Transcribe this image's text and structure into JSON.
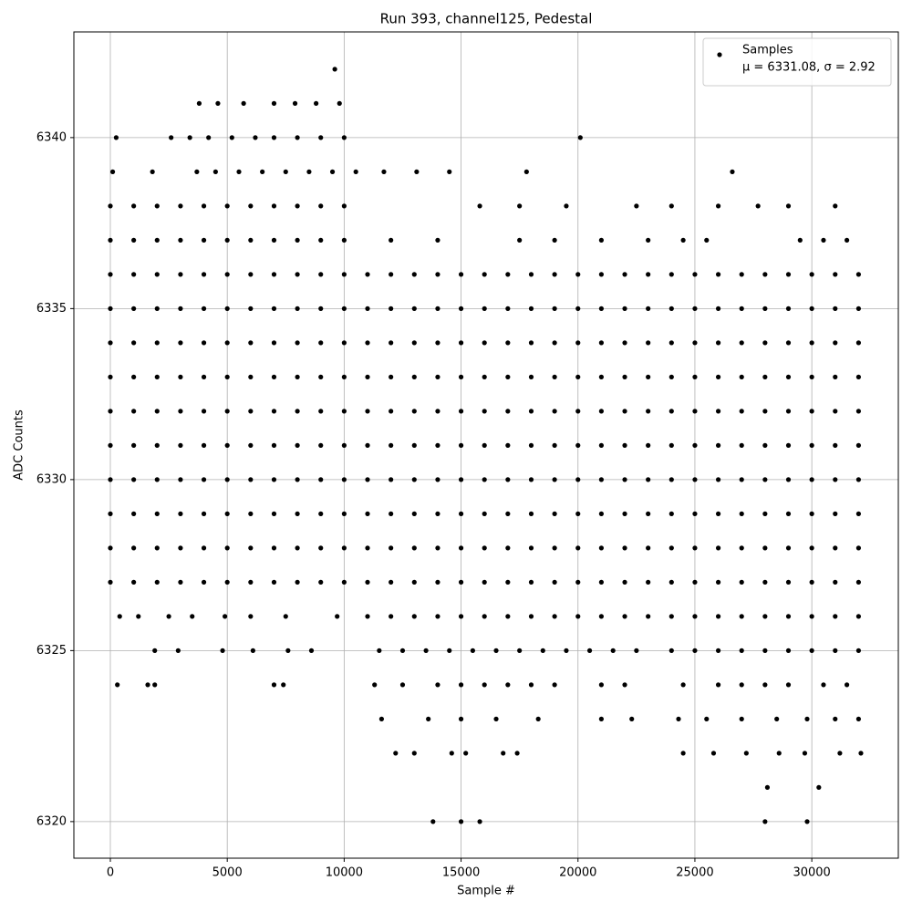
{
  "chart_data": {
    "type": "scatter",
    "title": "Run 393, channel125, Pedestal",
    "x_label": "Sample #",
    "y_label": "ADC Counts",
    "xlim": [
      -1560,
      33700
    ],
    "ylim": [
      6318.93,
      6343.09
    ],
    "xticks": [
      0,
      5000,
      10000,
      15000,
      20000,
      25000,
      30000
    ],
    "yticks": [
      6320,
      6325,
      6330,
      6335,
      6340
    ],
    "grid": true,
    "legend": "upper right",
    "legend_note": "μ = 6331.08, σ = 2.92",
    "x": [
      0,
      1000,
      2000,
      3000,
      4000,
      5000,
      6000,
      7000,
      8000,
      9000,
      10000,
      11000,
      12000,
      13000,
      14000,
      15000,
      16000,
      17000,
      18000,
      19000,
      20000,
      21000,
      22000,
      23000,
      24000,
      25000,
      26000,
      27000,
      28000,
      29000,
      30000,
      31000,
      32000,
      0,
      1000,
      2000,
      3000,
      4000,
      5000,
      6000,
      7000,
      8000,
      9000,
      10000,
      11000,
      12000,
      13000,
      14000,
      15000,
      16000,
      17000,
      18000,
      19000,
      20000,
      21000,
      22000,
      23000,
      24000,
      25000,
      26000,
      27000,
      28000,
      29000,
      30000,
      31000,
      32000,
      0,
      1000,
      2000,
      3000,
      4000,
      5000,
      6000,
      7000,
      8000,
      9000,
      10000,
      11000,
      12000,
      13000,
      14000,
      15000,
      16000,
      17000,
      18000,
      19000,
      20000,
      21000,
      22000,
      23000,
      24000,
      25000,
      26000,
      27000,
      28000,
      29000,
      30000,
      31000,
      32000,
      0,
      1000,
      2000,
      3000,
      4000,
      5000,
      6000,
      7000,
      8000,
      9000,
      10000,
      11000,
      12000,
      13000,
      14000,
      15000,
      16000,
      17000,
      18000,
      19000,
      20000,
      21000,
      22000,
      23000,
      24000,
      25000,
      26000,
      27000,
      28000,
      29000,
      30000,
      31000,
      32000,
      0,
      1000,
      2000,
      3000,
      4000,
      5000,
      6000,
      7000,
      8000,
      9000,
      10000,
      11000,
      12000,
      13000,
      14000,
      15000,
      16000,
      17000,
      18000,
      19000,
      20000,
      21000,
      22000,
      23000,
      24000,
      25000,
      26000,
      27000,
      28000,
      29000,
      30000,
      31000,
      32000,
      0,
      1000,
      2000,
      3000,
      4000,
      5000,
      6000,
      7000,
      8000,
      9000,
      10000,
      11000,
      12000,
      13000,
      14000,
      15000,
      16000,
      17000,
      18000,
      19000,
      20000,
      21000,
      22000,
      23000,
      24000,
      25000,
      26000,
      27000,
      28000,
      29000,
      30000,
      31000,
      32000,
      0,
      1000,
      2000,
      3000,
      4000,
      5000,
      6000,
      7000,
      8000,
      9000,
      10000,
      11000,
      12000,
      13000,
      14000,
      15000,
      16000,
      17000,
      18000,
      19000,
      20000,
      21000,
      22000,
      23000,
      24000,
      25000,
      26000,
      27000,
      28000,
      29000,
      30000,
      31000,
      32000,
      0,
      1000,
      2000,
      3000,
      4000,
      5000,
      6000,
      7000,
      8000,
      9000,
      10000,
      11000,
      12000,
      13000,
      14000,
      15000,
      16000,
      17000,
      18000,
      19000,
      20000,
      21000,
      22000,
      23000,
      24000,
      25000,
      26000,
      27000,
      28000,
      29000,
      30000,
      31000,
      32000,
      0,
      1000,
      2000,
      3000,
      4000,
      5000,
      6000,
      7000,
      8000,
      9000,
      10000,
      11000,
      12000,
      13000,
      14000,
      15000,
      16000,
      17000,
      18000,
      19000,
      20000,
      21000,
      22000,
      23000,
      24000,
      25000,
      26000,
      27000,
      28000,
      29000,
      30000,
      31000,
      32000,
      0,
      1000,
      2000,
      3000,
      4000,
      5000,
      6000,
      7000,
      8000,
      9000,
      10000,
      11000,
      12000,
      13000,
      14000,
      15000,
      16000,
      17000,
      18000,
      19000,
      20000,
      21000,
      22000,
      23000,
      24000,
      25000,
      26000,
      27000,
      28000,
      29000,
      30000,
      31000,
      32000,
      0,
      1000,
      2000,
      3000,
      4000,
      5000,
      6000,
      7000,
      8000,
      9000,
      10000,
      12000,
      14000,
      17500,
      19000,
      21000,
      23000,
      24500,
      25500,
      29500,
      30500,
      31500,
      0,
      1000,
      2000,
      3000,
      4000,
      5000,
      6000,
      7000,
      8000,
      9000,
      10000,
      15800,
      17500,
      19500,
      22500,
      24000,
      26000,
      27700,
      29000,
      31000,
      100,
      1800,
      3700,
      4500,
      5500,
      6500,
      7500,
      8500,
      9500,
      10500,
      11700,
      13100,
      14500,
      17800,
      26600,
      250,
      2600,
      3400,
      4200,
      5200,
      6200,
      7000,
      8000,
      9000,
      10000,
      20100,
      3800,
      4600,
      5700,
      7000,
      7900,
      8800,
      9800,
      9600,
      400,
      1200,
      2500,
      3500,
      4900,
      6000,
      7500,
      9700,
      11000,
      12000,
      13000,
      14000,
      15000,
      16000,
      17000,
      18000,
      19000,
      20000,
      21000,
      22000,
      23000,
      24000,
      25000,
      26000,
      27000,
      28000,
      29000,
      30000,
      31000,
      32000,
      1900,
      2900,
      4800,
      6100,
      7600,
      8600,
      11500,
      12500,
      13500,
      14500,
      15500,
      16500,
      17500,
      18500,
      19500,
      20500,
      21500,
      22500,
      24000,
      25000,
      26000,
      27000,
      28000,
      29000,
      30000,
      31000,
      32000,
      300,
      1600,
      1900,
      7000,
      7400,
      11300,
      12500,
      14000,
      15000,
      16000,
      17000,
      18000,
      19000,
      21000,
      22000,
      24500,
      26000,
      27000,
      28000,
      29000,
      30500,
      31500,
      11600,
      13600,
      15000,
      16500,
      18300,
      21000,
      22300,
      24300,
      25500,
      27000,
      28500,
      29800,
      31000,
      32000,
      12200,
      13000,
      14600,
      15200,
      16800,
      17400,
      24500,
      25800,
      27200,
      28600,
      29700,
      31200,
      32100,
      28100,
      30300,
      13800,
      15000,
      15800,
      28000,
      29800
    ],
    "series": [
      {
        "name": "Samples",
        "color": "#000000",
        "values": [
          6327,
          6327,
          6327,
          6327,
          6327,
          6327,
          6327,
          6327,
          6327,
          6327,
          6327,
          6327,
          6327,
          6327,
          6327,
          6327,
          6327,
          6327,
          6327,
          6327,
          6327,
          6327,
          6327,
          6327,
          6327,
          6327,
          6327,
          6327,
          6327,
          6327,
          6327,
          6327,
          6327,
          6328,
          6328,
          6328,
          6328,
          6328,
          6328,
          6328,
          6328,
          6328,
          6328,
          6328,
          6328,
          6328,
          6328,
          6328,
          6328,
          6328,
          6328,
          6328,
          6328,
          6328,
          6328,
          6328,
          6328,
          6328,
          6328,
          6328,
          6328,
          6328,
          6328,
          6328,
          6328,
          6328,
          6329,
          6329,
          6329,
          6329,
          6329,
          6329,
          6329,
          6329,
          6329,
          6329,
          6329,
          6329,
          6329,
          6329,
          6329,
          6329,
          6329,
          6329,
          6329,
          6329,
          6329,
          6329,
          6329,
          6329,
          6329,
          6329,
          6329,
          6329,
          6329,
          6329,
          6329,
          6329,
          6329,
          6330,
          6330,
          6330,
          6330,
          6330,
          6330,
          6330,
          6330,
          6330,
          6330,
          6330,
          6330,
          6330,
          6330,
          6330,
          6330,
          6330,
          6330,
          6330,
          6330,
          6330,
          6330,
          6330,
          6330,
          6330,
          6330,
          6330,
          6330,
          6330,
          6330,
          6330,
          6330,
          6330,
          6331,
          6331,
          6331,
          6331,
          6331,
          6331,
          6331,
          6331,
          6331,
          6331,
          6331,
          6331,
          6331,
          6331,
          6331,
          6331,
          6331,
          6331,
          6331,
          6331,
          6331,
          6331,
          6331,
          6331,
          6331,
          6331,
          6331,
          6331,
          6331,
          6331,
          6331,
          6331,
          6331,
          6332,
          6332,
          6332,
          6332,
          6332,
          6332,
          6332,
          6332,
          6332,
          6332,
          6332,
          6332,
          6332,
          6332,
          6332,
          6332,
          6332,
          6332,
          6332,
          6332,
          6332,
          6332,
          6332,
          6332,
          6332,
          6332,
          6332,
          6332,
          6332,
          6332,
          6332,
          6332,
          6332,
          6333,
          6333,
          6333,
          6333,
          6333,
          6333,
          6333,
          6333,
          6333,
          6333,
          6333,
          6333,
          6333,
          6333,
          6333,
          6333,
          6333,
          6333,
          6333,
          6333,
          6333,
          6333,
          6333,
          6333,
          6333,
          6333,
          6333,
          6333,
          6333,
          6333,
          6333,
          6333,
          6333,
          6334,
          6334,
          6334,
          6334,
          6334,
          6334,
          6334,
          6334,
          6334,
          6334,
          6334,
          6334,
          6334,
          6334,
          6334,
          6334,
          6334,
          6334,
          6334,
          6334,
          6334,
          6334,
          6334,
          6334,
          6334,
          6334,
          6334,
          6334,
          6334,
          6334,
          6334,
          6334,
          6334,
          6335,
          6335,
          6335,
          6335,
          6335,
          6335,
          6335,
          6335,
          6335,
          6335,
          6335,
          6335,
          6335,
          6335,
          6335,
          6335,
          6335,
          6335,
          6335,
          6335,
          6335,
          6335,
          6335,
          6335,
          6335,
          6335,
          6335,
          6335,
          6335,
          6335,
          6335,
          6335,
          6335,
          6336,
          6336,
          6336,
          6336,
          6336,
          6336,
          6336,
          6336,
          6336,
          6336,
          6336,
          6336,
          6336,
          6336,
          6336,
          6336,
          6336,
          6336,
          6336,
          6336,
          6336,
          6336,
          6336,
          6336,
          6336,
          6336,
          6336,
          6336,
          6336,
          6336,
          6336,
          6336,
          6336,
          6337,
          6337,
          6337,
          6337,
          6337,
          6337,
          6337,
          6337,
          6337,
          6337,
          6337,
          6337,
          6337,
          6337,
          6337,
          6337,
          6337,
          6337,
          6337,
          6337,
          6337,
          6337,
          6338,
          6338,
          6338,
          6338,
          6338,
          6338,
          6338,
          6338,
          6338,
          6338,
          6338,
          6338,
          6338,
          6338,
          6338,
          6338,
          6338,
          6338,
          6338,
          6338,
          6339,
          6339,
          6339,
          6339,
          6339,
          6339,
          6339,
          6339,
          6339,
          6339,
          6339,
          6339,
          6339,
          6339,
          6339,
          6340,
          6340,
          6340,
          6340,
          6340,
          6340,
          6340,
          6340,
          6340,
          6340,
          6340,
          6341,
          6341,
          6341,
          6341,
          6341,
          6341,
          6341,
          6342,
          6326,
          6326,
          6326,
          6326,
          6326,
          6326,
          6326,
          6326,
          6326,
          6326,
          6326,
          6326,
          6326,
          6326,
          6326,
          6326,
          6326,
          6326,
          6326,
          6326,
          6326,
          6326,
          6326,
          6326,
          6326,
          6326,
          6326,
          6326,
          6326,
          6326,
          6325,
          6325,
          6325,
          6325,
          6325,
          6325,
          6325,
          6325,
          6325,
          6325,
          6325,
          6325,
          6325,
          6325,
          6325,
          6325,
          6325,
          6325,
          6325,
          6325,
          6325,
          6325,
          6325,
          6325,
          6325,
          6325,
          6325,
          6324,
          6324,
          6324,
          6324,
          6324,
          6324,
          6324,
          6324,
          6324,
          6324,
          6324,
          6324,
          6324,
          6324,
          6324,
          6324,
          6324,
          6324,
          6324,
          6324,
          6324,
          6324,
          6323,
          6323,
          6323,
          6323,
          6323,
          6323,
          6323,
          6323,
          6323,
          6323,
          6323,
          6323,
          6323,
          6323,
          6322,
          6322,
          6322,
          6322,
          6322,
          6322,
          6322,
          6322,
          6322,
          6322,
          6322,
          6322,
          6322,
          6321,
          6321,
          6320,
          6320,
          6320,
          6320,
          6320
        ]
      }
    ]
  }
}
